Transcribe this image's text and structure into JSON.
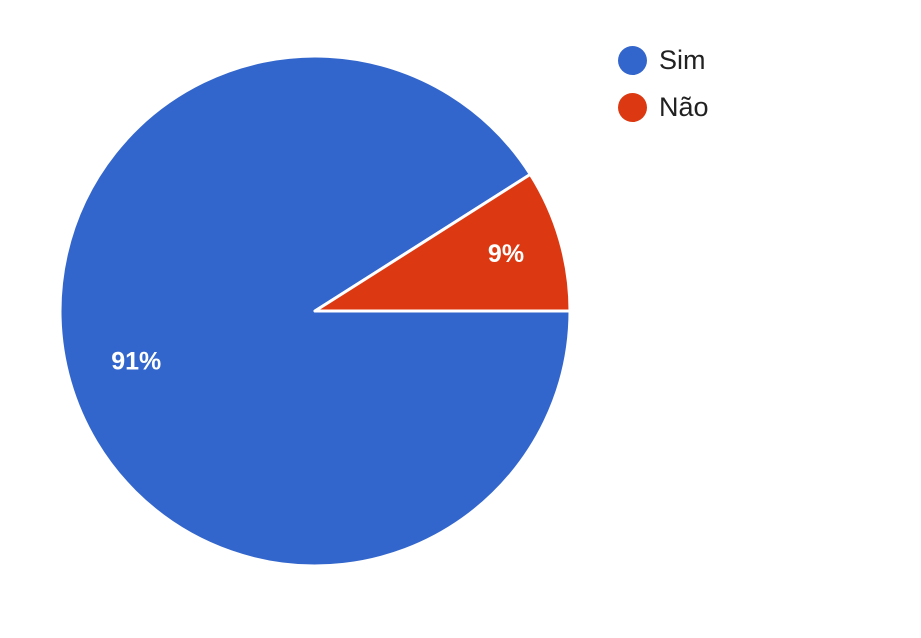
{
  "chart_data": {
    "type": "pie",
    "series": [
      {
        "label": "Sim",
        "value": 91,
        "value_label": "91%",
        "color": "#3366cc"
      },
      {
        "label": "Não",
        "value": 9,
        "value_label": "9%",
        "color": "#dc3912"
      }
    ],
    "legend_position": "top-right"
  }
}
